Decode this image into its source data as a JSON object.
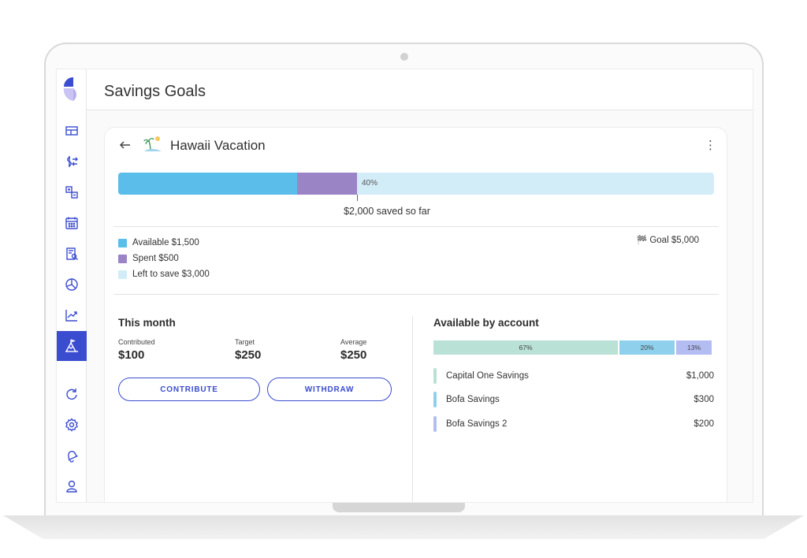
{
  "app": {
    "page_title": "Savings Goals"
  },
  "sidebar": {
    "items": [
      {
        "icon": "dashboard-icon",
        "active": false
      },
      {
        "icon": "transactions-icon",
        "active": false
      },
      {
        "icon": "budget-icon",
        "active": false
      },
      {
        "icon": "calendar-icon",
        "active": false
      },
      {
        "icon": "reports-icon",
        "active": false
      },
      {
        "icon": "pie-chart-icon",
        "active": false
      },
      {
        "icon": "trend-icon",
        "active": false
      },
      {
        "icon": "savings-goals-icon",
        "active": true
      },
      {
        "icon": "refresh-icon",
        "active": false
      },
      {
        "icon": "settings-icon",
        "active": false
      },
      {
        "icon": "notifications-icon",
        "active": false
      },
      {
        "icon": "profile-icon",
        "active": false
      }
    ]
  },
  "goal": {
    "name": "Hawaii Vacation",
    "progress_percent_label": "40%",
    "available_fraction": 0.3,
    "spent_fraction": 0.1,
    "saved_text": "$2,000 saved so far",
    "goal_label": "Goal $5,000",
    "legend": [
      {
        "label": "Available $1,500",
        "color": "#5bbde9"
      },
      {
        "label": "Spent $500",
        "color": "#9a84c6"
      },
      {
        "label": "Left to save $3,000",
        "color": "#d3edf8"
      }
    ]
  },
  "this_month": {
    "title": "This month",
    "stats": [
      {
        "label": "Contributed",
        "value": "$100"
      },
      {
        "label": "Target",
        "value": "$250"
      },
      {
        "label": "Average",
        "value": "$250"
      }
    ],
    "contribute_label": "CONTRIBUTE",
    "withdraw_label": "WITHDRAW"
  },
  "accounts": {
    "title": "Available by account",
    "bar": [
      {
        "label": "67%",
        "fraction": 0.67,
        "color": "#b9e1d6"
      },
      {
        "label": "20%",
        "fraction": 0.2,
        "color": "#8fd0ec"
      },
      {
        "label": "13%",
        "fraction": 0.13,
        "color": "#b3bdf1"
      }
    ],
    "list": [
      {
        "name": "Capital One Savings",
        "amount": "$1,000",
        "color": "#b9e1d6"
      },
      {
        "name": "Bofa Savings",
        "amount": "$300",
        "color": "#8fd0ec"
      },
      {
        "name": "Bofa Savings 2",
        "amount": "$200",
        "color": "#b3bdf1"
      }
    ]
  }
}
